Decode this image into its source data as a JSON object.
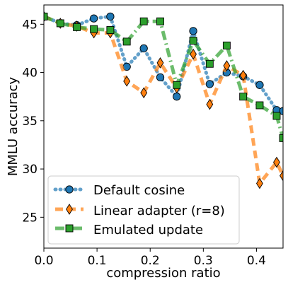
{
  "chart_data": {
    "type": "line",
    "xlabel": "compression ratio",
    "ylabel": "MMLU accuracy",
    "xlim": [
      0.0,
      0.45
    ],
    "ylim": [
      21.8,
      47.0
    ],
    "xticks": [
      "0.0",
      "0.1",
      "0.2",
      "0.3",
      "0.4"
    ],
    "xtick_values": [
      0.0,
      0.1,
      0.2,
      0.3,
      0.4
    ],
    "yticks": [
      "25",
      "30",
      "35",
      "40",
      "45"
    ],
    "ytick_values": [
      25,
      30,
      35,
      40,
      45
    ],
    "grid": false,
    "legend": {
      "placement": "lower-left"
    },
    "series": [
      {
        "name": "Default cosine",
        "color": "#1f77b4",
        "linestyle": "dotted",
        "marker": "circle",
        "x": [
          0.0,
          0.031,
          0.062,
          0.094,
          0.125,
          0.156,
          0.188,
          0.219,
          0.25,
          0.281,
          0.312,
          0.344,
          0.375,
          0.406,
          0.438,
          0.45
        ],
        "y": [
          45.8,
          45.1,
          44.9,
          45.6,
          45.8,
          40.6,
          42.5,
          39.5,
          37.5,
          44.3,
          38.8,
          40.0,
          39.6,
          38.7,
          36.1,
          36.0
        ]
      },
      {
        "name": "Linear adapter (r=8)",
        "color": "#ff7f0e",
        "linestyle": "dashed",
        "marker": "thin-diamond",
        "x": [
          0.0,
          0.031,
          0.062,
          0.094,
          0.125,
          0.156,
          0.188,
          0.219,
          0.25,
          0.281,
          0.312,
          0.344,
          0.375,
          0.406,
          0.438,
          0.45
        ],
        "y": [
          45.8,
          45.1,
          44.8,
          44.1,
          44.1,
          39.1,
          37.9,
          41.0,
          38.4,
          41.9,
          36.7,
          40.7,
          39.7,
          28.5,
          30.7,
          29.3
        ]
      },
      {
        "name": "Emulated update",
        "color": "#2ca02c",
        "linestyle": "dashdot",
        "marker": "square",
        "x": [
          0.0,
          0.031,
          0.062,
          0.094,
          0.125,
          0.156,
          0.188,
          0.219,
          0.25,
          0.281,
          0.312,
          0.344,
          0.375,
          0.406,
          0.438,
          0.45
        ],
        "y": [
          45.8,
          45.1,
          44.7,
          44.5,
          44.4,
          43.2,
          45.3,
          45.3,
          38.7,
          43.3,
          40.9,
          42.8,
          37.5,
          36.6,
          35.5,
          33.2
        ]
      }
    ]
  }
}
